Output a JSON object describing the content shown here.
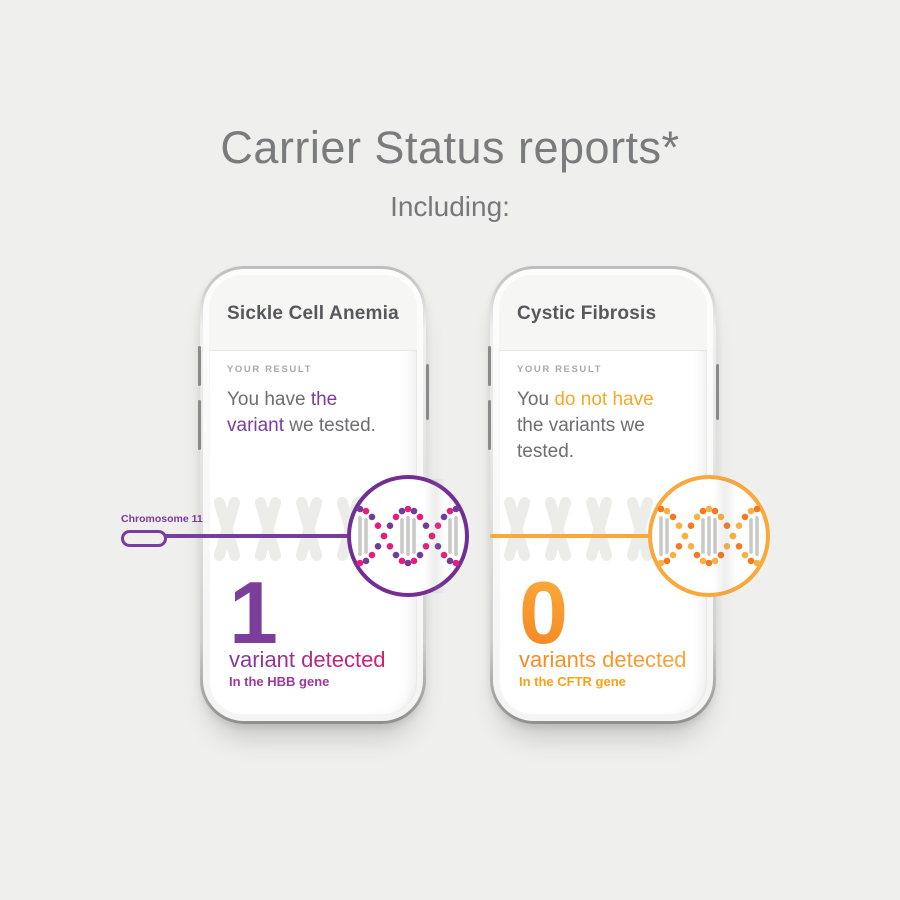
{
  "page": {
    "title": "Carrier Status reports*",
    "subtitle": "Including:"
  },
  "art": {
    "background": "#efefed",
    "chromosome_fill": "#ecece9",
    "rung_color": "#c9c9c7"
  },
  "cards": [
    {
      "disease_title": "Sickle Cell Anemia",
      "result_label": "YOUR RESULT",
      "result_lines": [
        [
          {
            "t": "You have ",
            "h": false
          },
          {
            "t": "the",
            "h": true
          }
        ],
        [
          {
            "t": "variant",
            "h": true
          },
          {
            "t": " we tested.",
            "h": false
          }
        ]
      ],
      "connector_label": "Chromosome 11",
      "count": "1",
      "detected_label": "variant detected",
      "gene_label": "In the HBB gene",
      "colors": {
        "highlight": "#7a3da0",
        "ring": "#712f94",
        "line": "#7a3b9d",
        "number_from": "#7b3f9b",
        "number_to": "#7b3f9b",
        "detected_from": "#7a3da0",
        "detected_to": "#d81b77",
        "gene": "#9c3a9b",
        "dot_a": "#6f3d97",
        "dot_b": "#e41e7e"
      }
    },
    {
      "disease_title": "Cystic Fibrosis",
      "result_label": "YOUR RESULT",
      "result_lines": [
        [
          {
            "t": "You ",
            "h": false
          },
          {
            "t": "do not have",
            "h": true
          }
        ],
        [
          {
            "t": "the variants we",
            "h": false
          }
        ],
        [
          {
            "t": "tested.",
            "h": false
          }
        ]
      ],
      "count": "0",
      "detected_label": "variants detected",
      "gene_label": "In the CFTR gene",
      "colors": {
        "highlight": "#f9a728",
        "ring": "#f9a93c",
        "line": "#f9a93c",
        "number_from": "#fbae3e",
        "number_to": "#f58220",
        "detected_from": "#f6871f",
        "detected_to": "#fba43a",
        "gene": "#f9a11b",
        "dot_a": "#f4791f",
        "dot_b": "#fbb042"
      }
    }
  ]
}
